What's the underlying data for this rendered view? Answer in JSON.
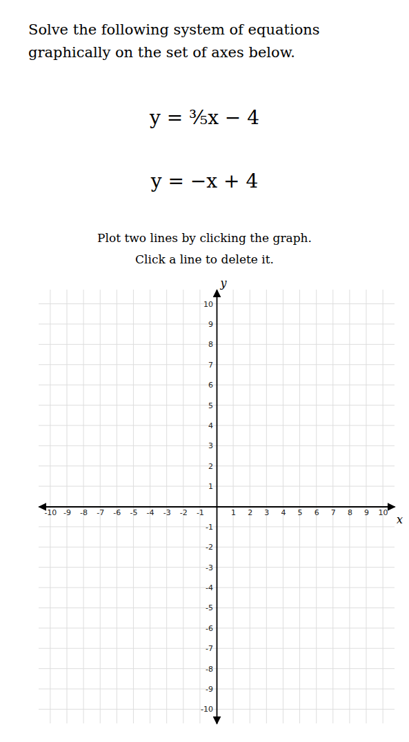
{
  "chart_data": {
    "type": "coordinate_plane",
    "title": "Solve the following system of equations",
    "subtitle": "graphically on the set of axes below.",
    "annotations": [
      "y = ⅗x − 4",
      "y = −x + 4",
      "Plot two lines by clicking the graph.",
      "Click a line to delete it."
    ],
    "x_label": "x",
    "y_label": "y",
    "xlim": [
      -10.7,
      10.7
    ],
    "ylim": [
      -10.7,
      10.7
    ],
    "xticks": [
      -10,
      -9,
      -8,
      -7,
      -6,
      -5,
      -4,
      -3,
      -2,
      -1,
      1,
      2,
      3,
      4,
      5,
      6,
      7,
      8,
      9,
      10
    ],
    "yticks": [
      -10,
      -9,
      -8,
      -7,
      -6,
      -5,
      -4,
      -3,
      -2,
      -1,
      1,
      2,
      3,
      4,
      5,
      6,
      7,
      8,
      9,
      10
    ],
    "grid": true
  }
}
